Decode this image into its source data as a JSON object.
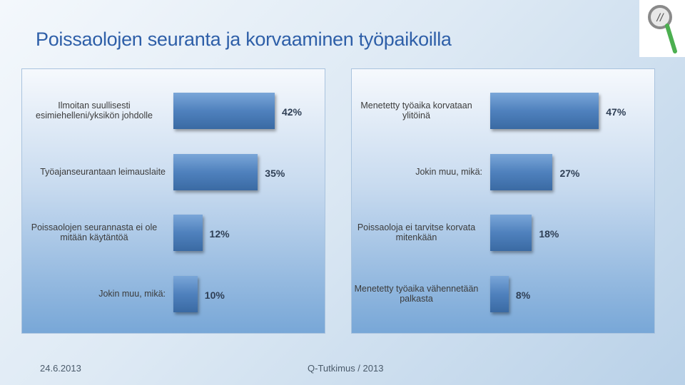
{
  "title": "Poissaolojen seuranta ja korvaaminen työpaikoilla",
  "footer": {
    "date": "24.6.2013",
    "source": "Q-Tutkimus / 2013"
  },
  "chart_data": [
    {
      "type": "hbar",
      "color": "#4f81bd",
      "categories": [
        "Ilmoitan suullisesti esimiehelleni/yksikön johdolle",
        "Työajanseurantaan leimauslaite",
        "Poissaolojen seurannasta ei ole mitään käytäntöä",
        "Jokin muu, mikä:"
      ],
      "values": [
        42,
        35,
        12,
        10
      ],
      "value_labels": [
        "42%",
        "35%",
        "12%",
        "10%"
      ]
    },
    {
      "type": "hbar",
      "color": "#4f81bd",
      "categories": [
        "Menetetty työaika korvataan ylitöinä",
        "Jokin muu, mikä:",
        "Poissaoloja ei tarvitse korvata mitenkään",
        "Menetetty työaika vähennetään palkasta"
      ],
      "values": [
        47,
        27,
        18,
        8
      ],
      "value_labels": [
        "47%",
        "27%",
        "18%",
        "8%"
      ]
    }
  ]
}
